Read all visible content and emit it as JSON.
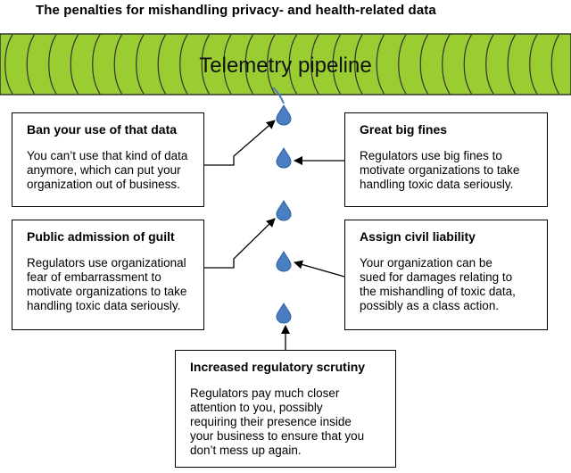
{
  "title": "The penalties for mishandling privacy- and health-related data",
  "pipeline": {
    "label": "Telemetry pipeline",
    "color": "#9acd32"
  },
  "drop_color": "#4a7ec2",
  "boxes": {
    "ban": {
      "title": "Ban your use of that data",
      "lines": [
        "You can’t use that kind of data",
        "anymore, which can put your",
        "organization out of business."
      ]
    },
    "fines": {
      "title": "Great big fines",
      "lines": [
        "Regulators use big fines to",
        "motivate organizations to take",
        "handling toxic data seriously."
      ]
    },
    "admission": {
      "title": "Public admission of guilt",
      "lines": [
        "Regulators use organizational",
        "fear of embarrassment to",
        "motivate organizations to take",
        "handling toxic data seriously."
      ]
    },
    "liability": {
      "title": "Assign civil liability",
      "lines": [
        "Your organization can be",
        "sued for damages relating to",
        "the mishandling of toxic data,",
        "possibly as a class action."
      ]
    },
    "scrutiny": {
      "title": "Increased regulatory scrutiny",
      "lines": [
        "Regulators pay much closer",
        "attention to you, possibly",
        "requiring their presence inside",
        "your business to ensure that you",
        "don’t mess up again."
      ]
    }
  }
}
